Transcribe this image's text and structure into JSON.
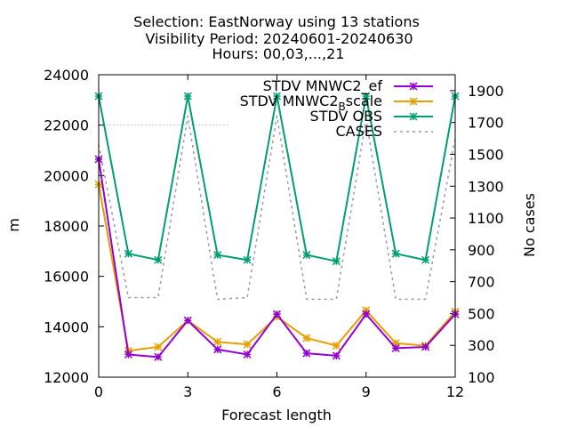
{
  "chart_data": {
    "type": "line",
    "title_lines": [
      "Selection: EastNorway using    13 stations",
      "Visibility   Period: 20240601-20240630",
      "Hours: 00,03,...,21"
    ],
    "xlabel": "Forecast length",
    "ylabel": "m",
    "y2label": "No cases",
    "xlim": [
      0,
      12
    ],
    "ylim": [
      12000,
      24000
    ],
    "y2lim": [
      100,
      2000
    ],
    "x_ticks": [
      0,
      3,
      6,
      9,
      12
    ],
    "y_ticks": [
      12000,
      14000,
      16000,
      18000,
      20000,
      22000,
      24000
    ],
    "y2_ticks": [
      100,
      300,
      500,
      700,
      900,
      1100,
      1300,
      1500,
      1700,
      1900
    ],
    "legend_position": "top-right",
    "x": [
      0,
      1,
      2,
      3,
      4,
      5,
      6,
      7,
      8,
      9,
      10,
      11,
      12
    ],
    "series": [
      {
        "name": "STDV MNWC2_ef",
        "legend_main": "STDV MNWC2_ef",
        "axis": "y",
        "color": "#9400d3",
        "marker": "star",
        "values": [
          20650,
          12900,
          12800,
          14250,
          13100,
          12900,
          14500,
          12950,
          12850,
          14500,
          13150,
          13200,
          14500
        ]
      },
      {
        "name": "STDV MNWC2_Bscale",
        "legend_main": "STDV MNWC2",
        "legend_sub": "B",
        "legend_tail": "scale",
        "axis": "y",
        "color": "#e69f00",
        "marker": "star",
        "values": [
          19650,
          13050,
          13200,
          14250,
          13400,
          13300,
          14400,
          13550,
          13250,
          14650,
          13350,
          13250,
          14600
        ]
      },
      {
        "name": "STDV OBS",
        "legend_main": "STDV OBS",
        "axis": "y",
        "color": "#009e73",
        "marker": "star",
        "values": [
          23150,
          16900,
          16650,
          23150,
          16850,
          16650,
          23150,
          16850,
          16600,
          23150,
          16900,
          16650,
          23150
        ]
      },
      {
        "name": "CASES",
        "legend_main": "CASES",
        "axis": "y2",
        "color": "#999999",
        "dashed": true,
        "values": [
          1560,
          600,
          600,
          1740,
          590,
          600,
          1740,
          590,
          590,
          1720,
          590,
          590,
          1600
        ]
      }
    ]
  }
}
